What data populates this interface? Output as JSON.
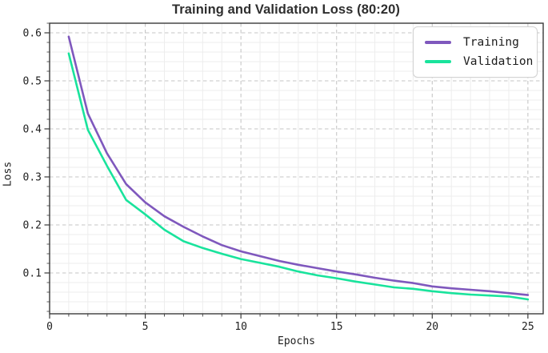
{
  "chart_data": {
    "type": "line",
    "title": "Training and Validation Loss (80:20)",
    "xlabel": "Epochs",
    "ylabel": "Loss",
    "x": [
      1,
      2,
      3,
      4,
      5,
      6,
      7,
      8,
      9,
      10,
      11,
      12,
      13,
      14,
      15,
      16,
      17,
      18,
      19,
      20,
      21,
      22,
      23,
      24,
      25
    ],
    "series": [
      {
        "name": "Training",
        "color": "#7f58bd",
        "values": [
          0.592,
          0.432,
          0.349,
          0.285,
          0.247,
          0.218,
          0.196,
          0.176,
          0.158,
          0.145,
          0.135,
          0.125,
          0.117,
          0.11,
          0.103,
          0.097,
          0.09,
          0.084,
          0.079,
          0.072,
          0.068,
          0.065,
          0.062,
          0.058,
          0.054
        ]
      },
      {
        "name": "Validation",
        "color": "#19e39c",
        "values": [
          0.557,
          0.398,
          0.323,
          0.252,
          0.222,
          0.19,
          0.166,
          0.152,
          0.14,
          0.129,
          0.121,
          0.113,
          0.103,
          0.095,
          0.089,
          0.082,
          0.076,
          0.07,
          0.067,
          0.062,
          0.058,
          0.055,
          0.053,
          0.051,
          0.045
        ]
      }
    ],
    "xlim": [
      0,
      25.8
    ],
    "ylim": [
      0.015,
      0.62
    ],
    "x_major_ticks": [
      0,
      5,
      10,
      15,
      20,
      25
    ],
    "y_major_ticks": [
      0.1,
      0.2,
      0.3,
      0.4,
      0.5,
      0.6
    ],
    "x_minor_step": 1,
    "y_minor_step": 0.02,
    "grid": "minor solid light + major dashed",
    "legend_position": "upper right",
    "colors": {
      "major_grid": "#c6c6c6",
      "minor_grid": "#ededed",
      "spine": "#3a3a3a",
      "tick_text": "#1f1f1f",
      "title_text": "#2e2e2e"
    }
  }
}
